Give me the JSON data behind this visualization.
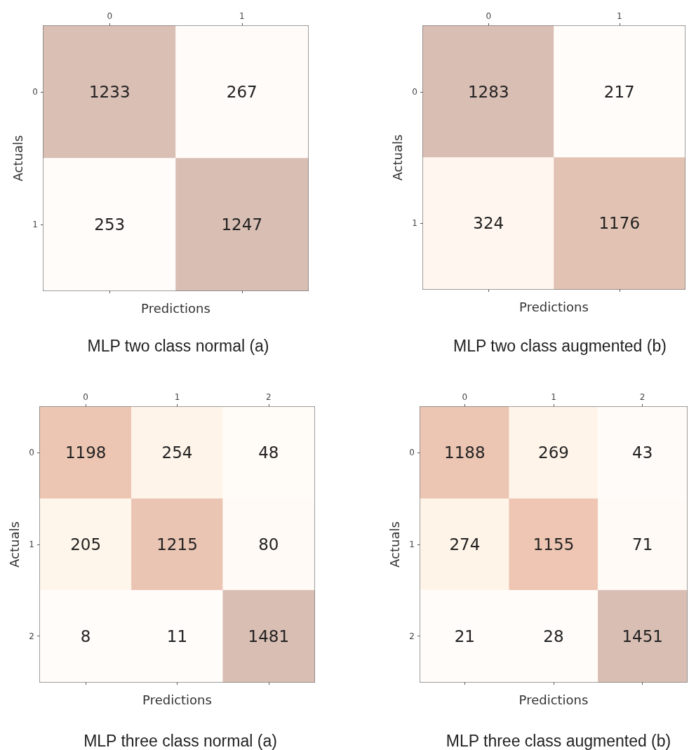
{
  "chart_data": [
    {
      "type": "heatmap",
      "xlabel": "Predictions",
      "ylabel": "Actuals",
      "categories": [
        "0",
        "1"
      ],
      "y_categories": [
        "0",
        "1"
      ],
      "cells": [
        [
          1233,
          267
        ],
        [
          253,
          1247
        ]
      ],
      "data_labels": true,
      "annotations": [
        "MLP two class normal (a)"
      ]
    },
    {
      "type": "heatmap",
      "xlabel": "Predictions",
      "ylabel": "Actuals",
      "categories": [
        "0",
        "1"
      ],
      "y_categories": [
        "0",
        "1"
      ],
      "cells": [
        [
          1283,
          217
        ],
        [
          324,
          1176
        ]
      ],
      "data_labels": true,
      "annotations": [
        "MLP two class augmented (b)"
      ]
    },
    {
      "type": "heatmap",
      "xlabel": "Predictions",
      "ylabel": "Actuals",
      "categories": [
        "0",
        "1",
        "2"
      ],
      "y_categories": [
        "0",
        "1",
        "2"
      ],
      "cells": [
        [
          1198,
          254,
          48
        ],
        [
          205,
          1215,
          80
        ],
        [
          8,
          11,
          1481
        ]
      ],
      "data_labels": true,
      "annotations": [
        "MLP three class normal (a)"
      ]
    },
    {
      "type": "heatmap",
      "xlabel": "Predictions",
      "ylabel": "Actuals",
      "categories": [
        "0",
        "1",
        "2"
      ],
      "y_categories": [
        "0",
        "1",
        "2"
      ],
      "cells": [
        [
          1188,
          269,
          43
        ],
        [
          274,
          1155,
          71
        ],
        [
          21,
          28,
          1451
        ]
      ],
      "data_labels": true,
      "annotations": [
        "MLP three class augmented (b)"
      ]
    }
  ]
}
